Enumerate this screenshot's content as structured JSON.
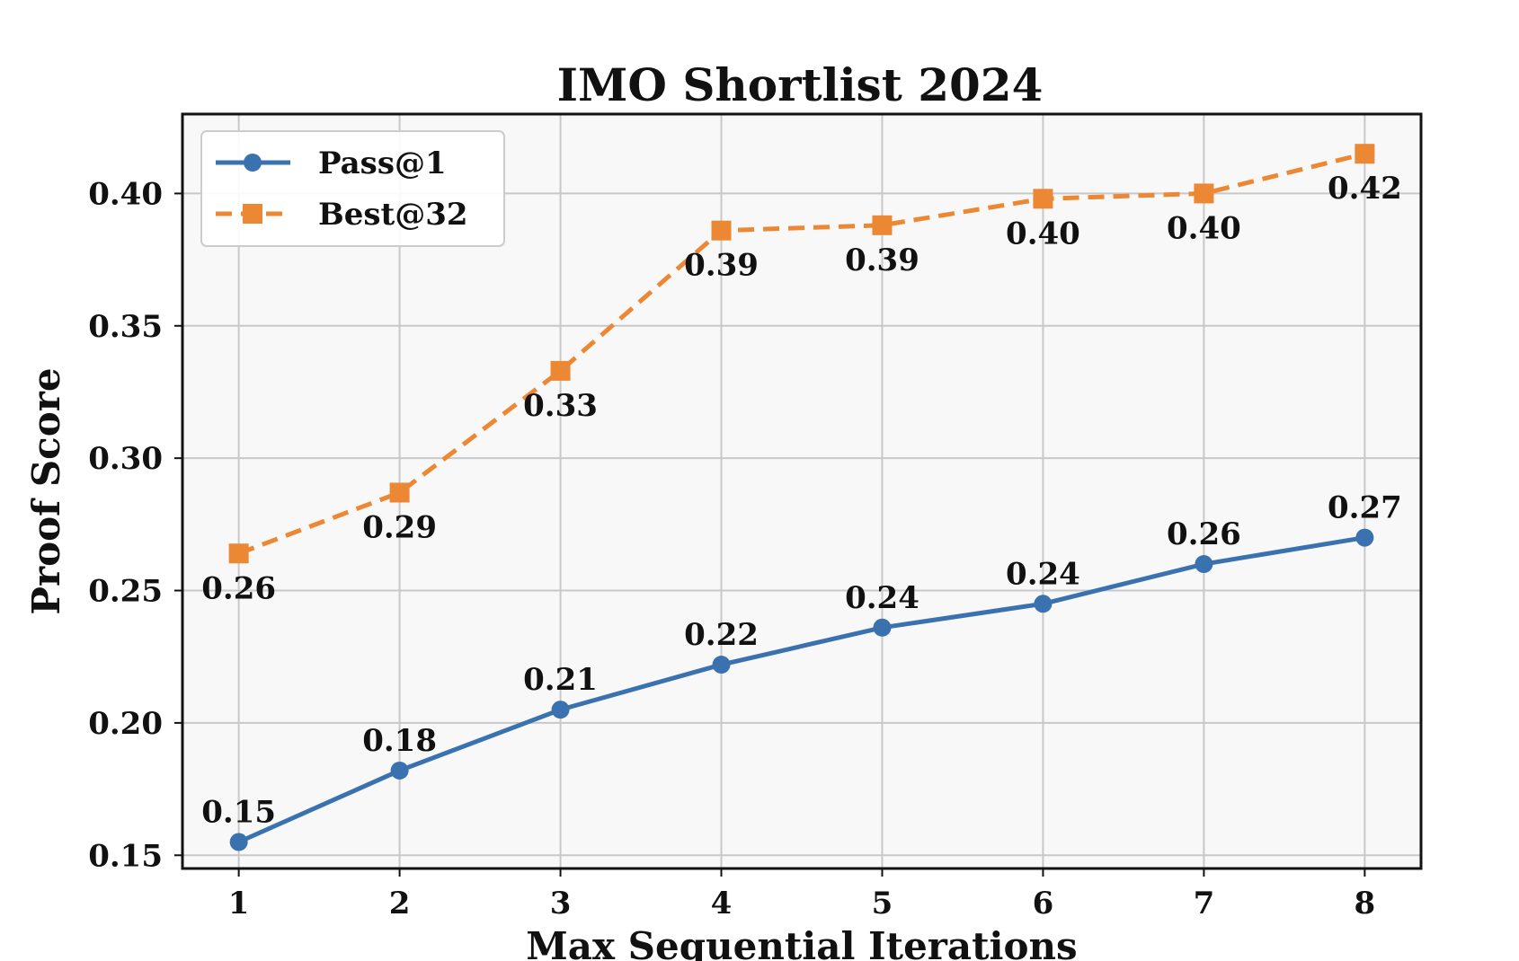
{
  "chart_data": {
    "type": "line",
    "title": "IMO Shortlist 2024",
    "xlabel": "Max Sequential Iterations",
    "ylabel": "Proof Score",
    "x": [
      1,
      2,
      3,
      4,
      5,
      6,
      7,
      8
    ],
    "xticks": [
      "1",
      "2",
      "3",
      "4",
      "5",
      "6",
      "7",
      "8"
    ],
    "yticks": [
      "0.15",
      "0.20",
      "0.25",
      "0.30",
      "0.35",
      "0.40"
    ],
    "ylim": [
      0.145,
      0.43
    ],
    "xlim": [
      0.65,
      8.35
    ],
    "grid": true,
    "legend_position": "top-left",
    "series": [
      {
        "name": "Pass@1",
        "color": "#3a72b0",
        "marker": "circle",
        "linestyle": "solid",
        "label_position": "above",
        "values": [
          0.155,
          0.182,
          0.205,
          0.222,
          0.236,
          0.245,
          0.26,
          0.27
        ],
        "labels": [
          "0.15",
          "0.18",
          "0.21",
          "0.22",
          "0.24",
          "0.24",
          "0.26",
          "0.27"
        ]
      },
      {
        "name": "Best@32",
        "color": "#ec8733",
        "marker": "square",
        "linestyle": "dashed",
        "label_position": "below",
        "values": [
          0.264,
          0.287,
          0.333,
          0.386,
          0.388,
          0.398,
          0.4,
          0.415
        ],
        "labels": [
          "0.26",
          "0.29",
          "0.33",
          "0.39",
          "0.39",
          "0.40",
          "0.40",
          "0.42"
        ]
      }
    ]
  }
}
